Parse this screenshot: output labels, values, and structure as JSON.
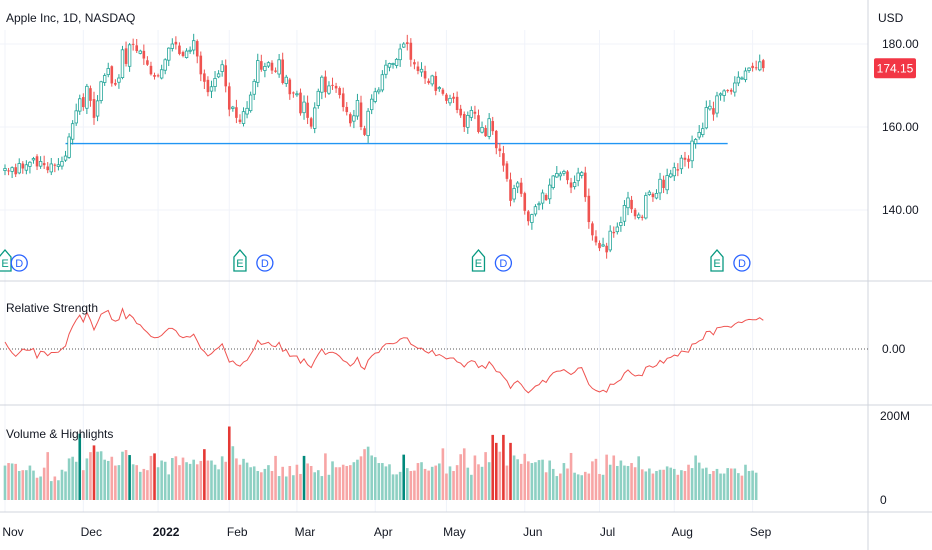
{
  "header": {
    "title": "Apple Inc, 1D, NASDAQ",
    "currency": "USD"
  },
  "price_axis": {
    "ticks": [
      {
        "label": "180.00",
        "value": 180
      },
      {
        "label": "160.00",
        "value": 160
      },
      {
        "label": "140.00",
        "value": 140
      }
    ],
    "last_price_label": "174.15",
    "last_price_value": 174.15
  },
  "panes": {
    "rs_label": "Relative Strength",
    "rs_zero_label": "0.00",
    "volume_label": "Volume & Highlights",
    "volume_ticks": [
      {
        "label": "200M",
        "value": 200
      },
      {
        "label": "0",
        "value": 0
      }
    ]
  },
  "time_axis": {
    "ticks": [
      {
        "label": "Nov",
        "bold": false
      },
      {
        "label": "Dec",
        "bold": false
      },
      {
        "label": "2022",
        "bold": true
      },
      {
        "label": "Feb",
        "bold": false
      },
      {
        "label": "Mar",
        "bold": false
      },
      {
        "label": "Apr",
        "bold": false
      },
      {
        "label": "May",
        "bold": false
      },
      {
        "label": "Jun",
        "bold": false
      },
      {
        "label": "Jul",
        "bold": false
      },
      {
        "label": "Aug",
        "bold": false
      },
      {
        "label": "Sep",
        "bold": false
      }
    ]
  },
  "event_markers": [
    {
      "label": "E",
      "kind": "earnings"
    },
    {
      "label": "D",
      "kind": "dividend"
    },
    {
      "label": "E",
      "kind": "earnings"
    },
    {
      "label": "D",
      "kind": "dividend"
    },
    {
      "label": "E",
      "kind": "earnings"
    },
    {
      "label": "D",
      "kind": "dividend"
    },
    {
      "label": "E",
      "kind": "earnings"
    },
    {
      "label": "D",
      "kind": "dividend"
    }
  ],
  "colors": {
    "up": "#26a69a",
    "down": "#ef5350",
    "up_volume": "#8dd0c3",
    "down_volume": "#f7a5a5",
    "up_highlight": "#00897b",
    "down_highlight": "#e53935",
    "support_line": "#2196f3",
    "rs_line": "#ef5350",
    "grid": "#f0f3fa",
    "separator": "#d1d4dc",
    "earnings_marker": "#089981",
    "dividend_marker": "#2962ff",
    "last_price_bg": "#f23645"
  },
  "chart_data": {
    "type": "candlestick",
    "symbol": "Apple Inc",
    "interval": "1D",
    "exchange": "NASDAQ",
    "support_level": 156,
    "price_range": [
      126,
      184
    ],
    "closes": [
      150.0,
      149.3,
      150.2,
      148.6,
      151.2,
      150.0,
      150.9,
      151.5,
      152.4,
      150.5,
      151.7,
      150.8,
      149.6,
      151.1,
      150.8,
      150.9,
      151.7,
      153.0,
      157.6,
      160.8,
      163.9,
      166.8,
      164.8,
      169.8,
      166.3,
      162.2,
      166.3,
      170.9,
      172.4,
      174.1,
      170.5,
      170.2,
      171.8,
      178.6,
      175.2,
      179.8,
      180.0,
      178.3,
      178.3,
      176.5,
      175.0,
      172.7,
      172.1,
      172.4,
      173.8,
      176.2,
      179.0,
      180.0,
      179.9,
      177.6,
      177.1,
      178.3,
      178.5,
      180.8,
      177.0,
      172.7,
      170.9,
      168.4,
      169.7,
      171.7,
      172.8,
      175.0,
      169.8,
      164.2,
      164.8,
      162.2,
      161.2,
      163.7,
      164.5,
      167.7,
      171.0,
      176.0,
      173.8,
      174.6,
      175.5,
      173.6,
      173.3,
      176.2,
      170.6,
      172.0,
      167.9,
      168.1,
      168.0,
      163.3,
      166.0,
      162.2,
      160.1,
      164.6,
      168.6,
      172.0,
      168.4,
      169.9,
      170.1,
      169.3,
      167.7,
      164.8,
      163.6,
      160.9,
      162.7,
      166.4,
      160.0,
      158.1,
      163.8,
      166.7,
      168.5,
      168.9,
      172.6,
      174.9,
      175.3,
      175.3,
      176.3,
      178.8,
      180.0,
      180.0,
      176.2,
      175.1,
      173.5,
      173.9,
      171.7,
      170.6,
      172.3,
      168.7,
      169.5,
      168.0,
      166.3,
      166.9,
      166.8,
      164.1,
      162.8,
      160.0,
      162.8,
      164.0,
      163.2,
      158.8,
      159.9,
      157.8,
      162.0,
      159.0,
      154.9,
      154.2,
      150.7,
      147.5,
      142.2,
      145.2,
      146.5,
      143.9,
      139.8,
      137.3,
      138.9,
      140.8,
      141.5,
      144.1,
      142.4,
      146.0,
      148.2,
      148.8,
      148.7,
      149.3,
      147.2,
      145.4,
      146.6,
      148.9,
      149.0,
      143.1,
      137.1,
      133.9,
      132.2,
      130.8,
      131.6,
      129.8,
      134.9,
      134.4,
      135.9,
      137.0,
      141.1,
      142.9,
      140.2,
      138.5,
      138.8,
      138.1,
      143.5,
      144.3,
      143.1,
      144.0,
      147.4,
      145.3,
      148.3,
      148.7,
      150.2,
      149.5,
      152.5,
      152.1,
      151.6,
      156.6,
      157.0,
      158.7,
      159.6,
      164.7,
      165.0,
      163.0,
      167.5,
      168.0,
      168.7,
      168.8,
      168.5,
      170.6,
      172.0,
      171.8,
      173.5,
      174.2,
      174.2,
      174.2,
      175.7,
      174.2
    ],
    "volumes_million": [
      82,
      88,
      87,
      86,
      69,
      71,
      71,
      82,
      70,
      53,
      56,
      77,
      114,
      45,
      56,
      47,
      72,
      68,
      99,
      103,
      91,
      158,
      71,
      99,
      114,
      130,
      115,
      116,
      96,
      93,
      103,
      82,
      83,
      115,
      119,
      107,
      85,
      83,
      67,
      74,
      71,
      105,
      111,
      78,
      94,
      91,
      61,
      100,
      104,
      83,
      101,
      90,
      86,
      96,
      85,
      93,
      121,
      94,
      94,
      84,
      73,
      104,
      91,
      175,
      128,
      99,
      84,
      98,
      89,
      78,
      80,
      69,
      66,
      74,
      83,
      69,
      105,
      57,
      79,
      56,
      81,
      59,
      84,
      62,
      105,
      87,
      81,
      66,
      71,
      57,
      111,
      60,
      92,
      78,
      78,
      84,
      81,
      83,
      90,
      96,
      104,
      121,
      127,
      106,
      102,
      88,
      88,
      80,
      85,
      61,
      61,
      67,
      108,
      76,
      69,
      70,
      88,
      90,
      74,
      70,
      79,
      82,
      87,
      123,
      63,
      80,
      69,
      83,
      109,
      123,
      77,
      60,
      106,
      85,
      79,
      114,
      90,
      155,
      136,
      115,
      155,
      82,
      136,
      106,
      97,
      86,
      110,
      92,
      88,
      90,
      95,
      96,
      66,
      94,
      74,
      57,
      63,
      88,
      75,
      112,
      65,
      61,
      59,
      67,
      63,
      92,
      98,
      62,
      60,
      108,
      84,
      106,
      81,
      94,
      82,
      81,
      88,
      78,
      104,
      73,
      68,
      75,
      63,
      69,
      72,
      72,
      80,
      77,
      74,
      60,
      71,
      69,
      84,
      76,
      106,
      89,
      75,
      77,
      62,
      69,
      74,
      63,
      63,
      76,
      75,
      75,
      64,
      58,
      84,
      69,
      70,
      65
    ],
    "relative_strength": [
      2.4,
      0.3,
      -1.3,
      -2.5,
      -1.3,
      0.0,
      -0.4,
      -0.4,
      0.2,
      -3.1,
      -0.8,
      -1.0,
      -2.3,
      -1.2,
      -1.2,
      -1.1,
      0.1,
      1.0,
      5.2,
      7.8,
      10.0,
      11.7,
      9.3,
      12.6,
      10.0,
      6.6,
      9.2,
      12.0,
      12.7,
      13.3,
      10.2,
      9.6,
      10.1,
      13.9,
      10.4,
      11.9,
      10.8,
      8.8,
      8.3,
      6.8,
      5.7,
      4.3,
      3.9,
      4.0,
      4.7,
      6.0,
      7.1,
      7.1,
      6.3,
      4.5,
      3.9,
      4.3,
      4.1,
      5.1,
      2.8,
      0.2,
      -0.9,
      -2.4,
      -1.6,
      -0.3,
      0.5,
      1.8,
      -1.3,
      -4.5,
      -4.1,
      -5.4,
      -5.9,
      -4.5,
      -3.9,
      -1.9,
      0.1,
      3.0,
      1.6,
      1.9,
      2.3,
      1.1,
      0.8,
      2.3,
      -0.8,
      -0.2,
      -2.5,
      -2.4,
      -2.4,
      -4.9,
      -3.4,
      -5.4,
      -6.4,
      -3.9,
      -1.8,
      -0.0,
      -1.9,
      -1.2,
      -1.1,
      -1.6,
      -2.5,
      -4.0,
      -4.6,
      -5.9,
      -4.9,
      -2.9,
      -6.1,
      -7.0,
      -3.9,
      -2.4,
      -1.4,
      -1.2,
      0.7,
      1.8,
      1.9,
      1.8,
      2.2,
      3.4,
      3.9,
      3.8,
      1.7,
      1.0,
      0.2,
      0.3,
      -0.8,
      -1.4,
      -0.5,
      -2.3,
      -1.9,
      -2.6,
      -3.4,
      -3.1,
      -3.1,
      -4.4,
      -4.9,
      -6.2,
      -4.7,
      -4.0,
      -4.3,
      -6.4,
      -5.7,
      -6.7,
      -4.4,
      -5.8,
      -7.8,
      -8.0,
      -9.6,
      -11.0,
      -13.6,
      -11.8,
      -11.0,
      -12.2,
      -14.0,
      -15.1,
      -14.0,
      -12.8,
      -12.3,
      -10.8,
      -11.5,
      -9.5,
      -8.2,
      -7.7,
      -7.6,
      -7.1,
      -8.0,
      -8.8,
      -8.0,
      -6.6,
      -6.4,
      -9.3,
      -12.2,
      -13.6,
      -14.3,
      -14.8,
      -14.2,
      -14.9,
      -12.1,
      -12.2,
      -11.3,
      -10.6,
      -8.3,
      -7.2,
      -8.5,
      -9.3,
      -9.0,
      -9.2,
      -6.3,
      -5.8,
      -6.3,
      -5.7,
      -3.9,
      -4.9,
      -3.2,
      -2.9,
      -2.1,
      -2.4,
      -0.7,
      -0.9,
      -1.1,
      1.7,
      1.9,
      2.8,
      3.3,
      6.0,
      6.1,
      4.9,
      7.3,
      7.5,
      7.8,
      7.8,
      7.5,
      8.6,
      9.3,
      9.1,
      9.9,
      10.2,
      10.1,
      10.1,
      10.8,
      9.9
    ]
  }
}
